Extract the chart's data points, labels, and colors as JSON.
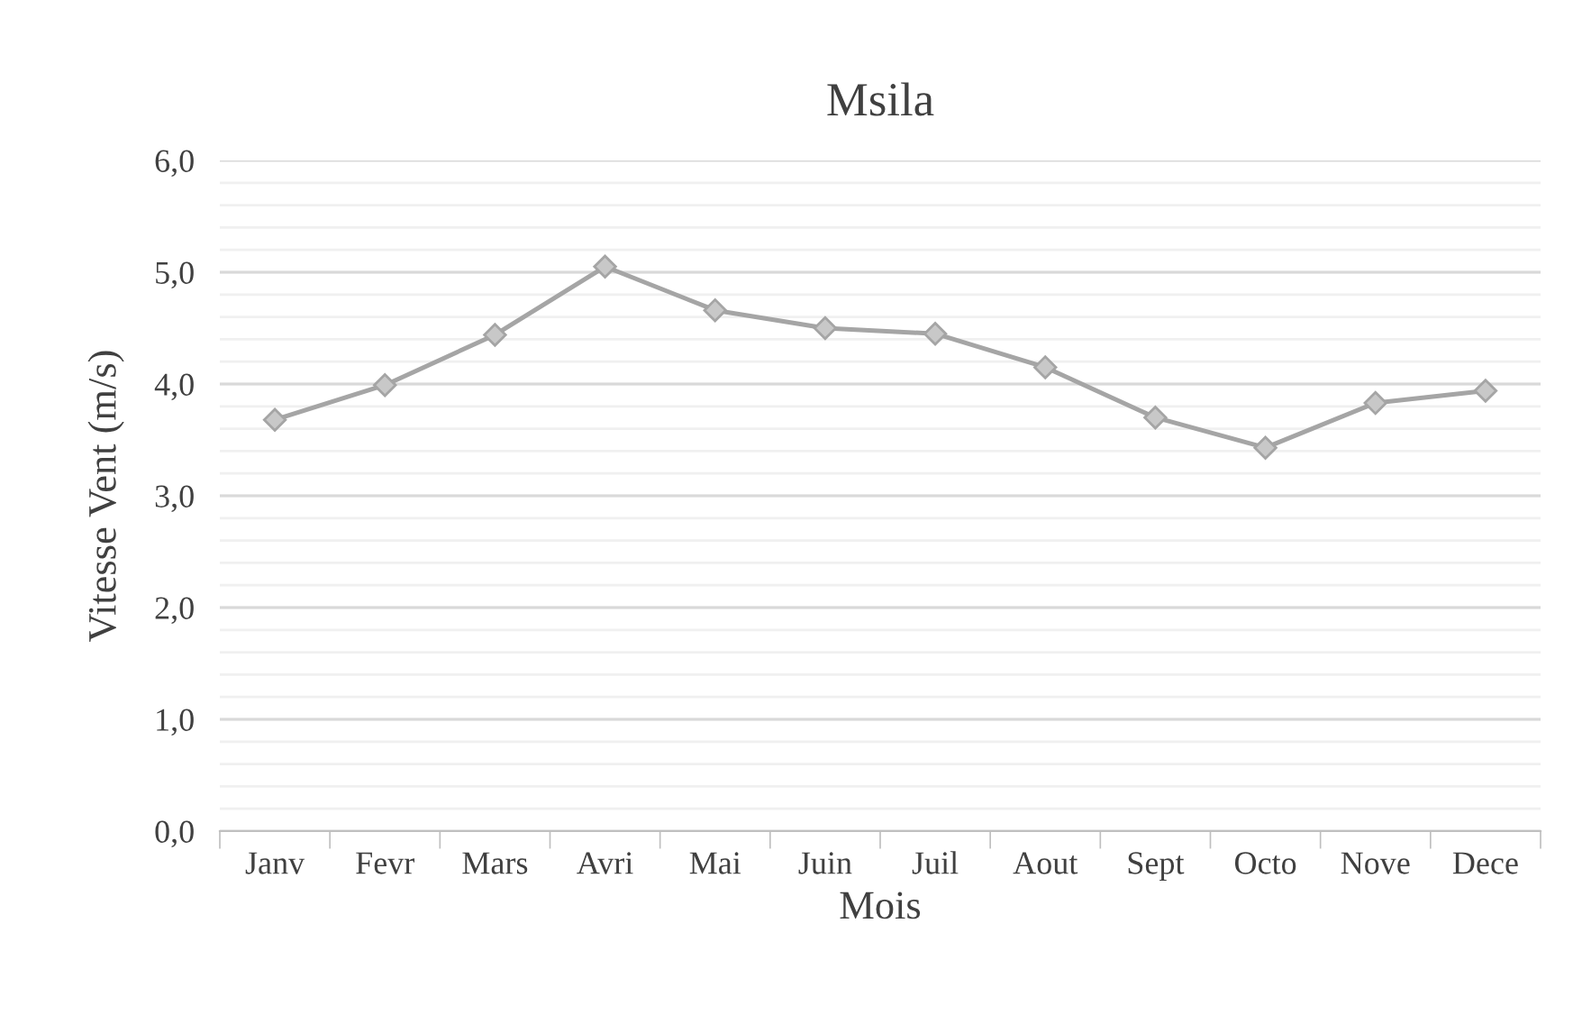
{
  "chart_data": {
    "type": "line",
    "title": "Msila",
    "xlabel": "Mois",
    "ylabel": "Vitesse Vent (m/s)",
    "categories": [
      "Janv",
      "Fevr",
      "Mars",
      "Avri",
      "Mai",
      "Juin",
      "Juil",
      "Aout",
      "Sept",
      "Octo",
      "Nove",
      "Dece"
    ],
    "series": [
      {
        "color": "#a5a5a5",
        "values": [
          3.68,
          3.99,
          4.44,
          5.05,
          4.66,
          4.5,
          4.45,
          4.15,
          3.7,
          3.43,
          3.83,
          3.94
        ]
      }
    ],
    "ylim": [
      0,
      6
    ],
    "yticks": [
      {
        "value": 0,
        "label": "0,0"
      },
      {
        "value": 1,
        "label": "1,0"
      },
      {
        "value": 2,
        "label": "2,0"
      },
      {
        "value": 3,
        "label": "3,0"
      },
      {
        "value": 4,
        "label": "4,0"
      },
      {
        "value": 5,
        "label": "5,0"
      },
      {
        "value": 6,
        "label": "6,0"
      }
    ],
    "grid": "y",
    "marker": "diamond",
    "line_style": "solid",
    "legend": false
  }
}
